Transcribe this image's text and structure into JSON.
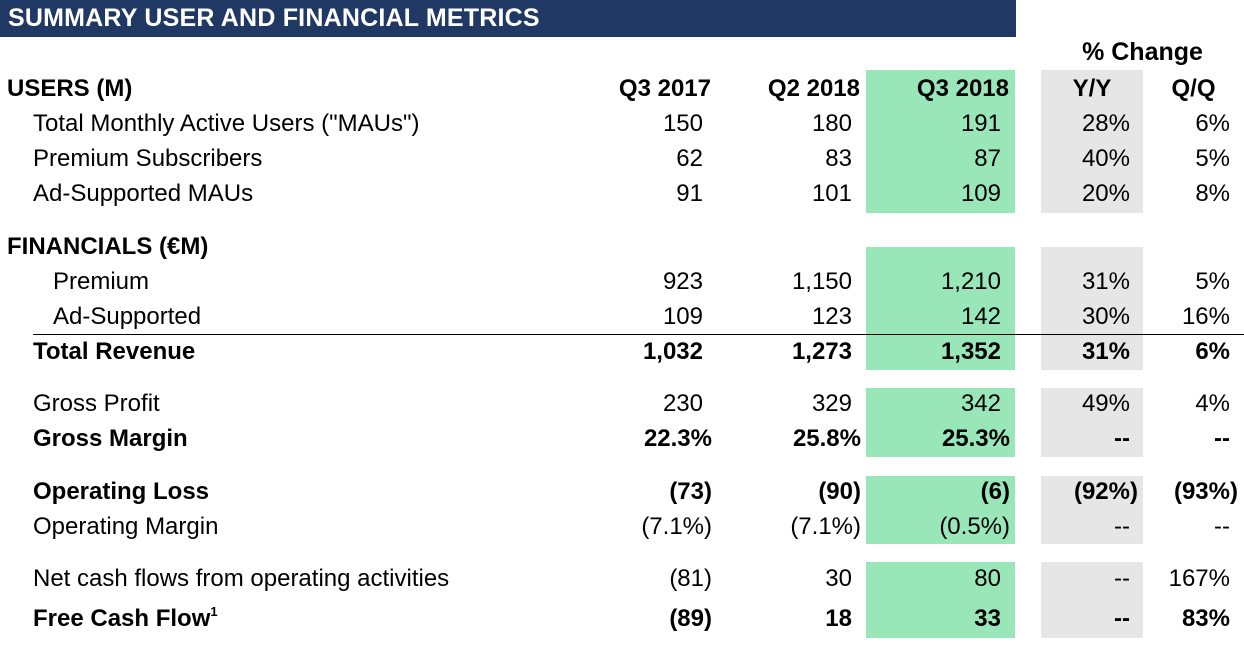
{
  "title": "SUMMARY USER AND FINANCIAL METRICS",
  "pct_change": "% Change",
  "columns": {
    "q317": "Q3 2017",
    "q218": "Q2 2018",
    "q318": "Q3 2018",
    "yy": "Y/Y",
    "qq": "Q/Q"
  },
  "colors": {
    "title_bg": "#1f3864",
    "highlight_current": "#99e6b9",
    "highlight_change": "#e6e6e6"
  },
  "users": {
    "heading": "USERS (M)",
    "rows": [
      {
        "label": "Total Monthly Active Users (\"MAUs\")",
        "q317": "150",
        "q218": "180",
        "q318": "191",
        "yy": "28%",
        "qq": "6%"
      },
      {
        "label": "Premium Subscribers",
        "q317": "62",
        "q218": "83",
        "q318": "87",
        "yy": "40%",
        "qq": "5%"
      },
      {
        "label": "Ad-Supported MAUs",
        "q317": "91",
        "q218": "101",
        "q318": "109",
        "yy": "20%",
        "qq": "8%"
      }
    ]
  },
  "financials": {
    "heading": "FINANCIALS (€M)",
    "premium": {
      "label": "Premium",
      "q317": "923",
      "q218": "1,150",
      "q318": "1,210",
      "yy": "31%",
      "qq": "5%"
    },
    "ad_supported": {
      "label": "Ad-Supported",
      "q317": "109",
      "q218": "123",
      "q318": "142",
      "yy": "30%",
      "qq": "16%"
    },
    "total_revenue": {
      "label": "Total Revenue",
      "q317": "1,032",
      "q218": "1,273",
      "q318": "1,352",
      "yy": "31%",
      "qq": "6%"
    },
    "gross_profit": {
      "label": "Gross Profit",
      "q317": "230",
      "q218": "329",
      "q318": "342",
      "yy": "49%",
      "qq": "4%"
    },
    "gross_margin": {
      "label": "Gross Margin",
      "q317": "22.3%",
      "q218": "25.8%",
      "q318": "25.3%",
      "yy": "--",
      "qq": "--"
    },
    "operating_loss": {
      "label": "Operating Loss",
      "q317": "(73)",
      "q218": "(90)",
      "q318": "(6)",
      "yy": "(92%)",
      "qq": "(93%)"
    },
    "operating_margin": {
      "label": "Operating Margin",
      "q317": "(7.1%)",
      "q218": "(7.1%)",
      "q318": "(0.5%)",
      "yy": "--",
      "qq": "--"
    },
    "net_cash": {
      "label": "Net cash flows from operating activities",
      "q317": "(81)",
      "q218": "30",
      "q318": "80",
      "yy": "--",
      "qq": "167%"
    },
    "fcf": {
      "label": "Free Cash Flow",
      "sup": "1",
      "q317": "(89)",
      "q218": "18",
      "q318": "33",
      "yy": "--",
      "qq": "83%"
    }
  }
}
